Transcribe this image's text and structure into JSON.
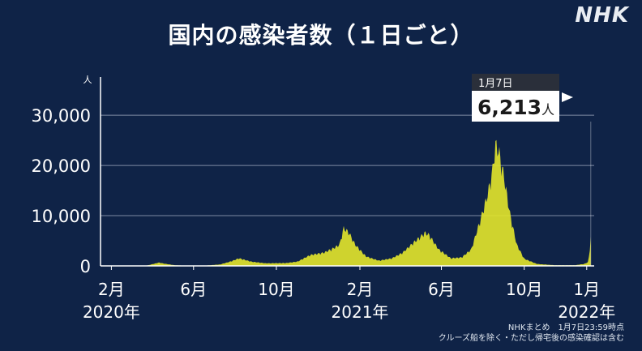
{
  "brand": "NHK",
  "source": {
    "line1": "NHKまとめ　1月7日23:59時点",
    "line2": "クルーズ船を除く・ただし帰宅後の感染確認は含む"
  },
  "colors": {
    "background": "#0f2347",
    "bar_fill": "#dfe32c",
    "grid": "#7d8aa3",
    "callout_header": "#2a2f3a",
    "callout_body": "#ffffff"
  },
  "callout": {
    "date": "1月7日",
    "value": "6,213",
    "unit": "人"
  },
  "chart_data": {
    "type": "bar",
    "title": "国内の感染者数（１日ごと）",
    "ylabel": "人",
    "xlabel": "",
    "ylim": [
      0,
      36000
    ],
    "grid": true,
    "y_ticks": [
      0,
      10000,
      20000,
      30000
    ],
    "y_tick_labels": [
      "0",
      "10,000",
      "20,000",
      "30,000"
    ],
    "x_ticks": [
      {
        "date": "2020-02-01",
        "label": "2月",
        "year": "2020年"
      },
      {
        "date": "2020-06-01",
        "label": "6月",
        "year": ""
      },
      {
        "date": "2020-10-01",
        "label": "10月",
        "year": ""
      },
      {
        "date": "2021-02-01",
        "label": "2月",
        "year": "2021年"
      },
      {
        "date": "2021-06-01",
        "label": "6月",
        "year": ""
      },
      {
        "date": "2021-10-01",
        "label": "10月",
        "year": ""
      },
      {
        "date": "2022-01-01",
        "label": "1月",
        "year": "2022年"
      }
    ],
    "series": [
      {
        "points": [
          [
            "2020-01-16",
            0
          ],
          [
            "2020-03-01",
            10
          ],
          [
            "2020-03-25",
            100
          ],
          [
            "2020-04-11",
            700
          ],
          [
            "2020-04-20",
            450
          ],
          [
            "2020-05-05",
            130
          ],
          [
            "2020-05-25",
            30
          ],
          [
            "2020-06-20",
            80
          ],
          [
            "2020-07-10",
            300
          ],
          [
            "2020-07-25",
            900
          ],
          [
            "2020-08-07",
            1600
          ],
          [
            "2020-08-25",
            900
          ],
          [
            "2020-09-15",
            550
          ],
          [
            "2020-10-15",
            600
          ],
          [
            "2020-11-01",
            900
          ],
          [
            "2020-11-20",
            2300
          ],
          [
            "2020-12-10",
            2800
          ],
          [
            "2020-12-25",
            3800
          ],
          [
            "2021-01-02",
            4500
          ],
          [
            "2021-01-08",
            8000
          ],
          [
            "2021-01-16",
            7000
          ],
          [
            "2021-01-25",
            4500
          ],
          [
            "2021-02-10",
            2000
          ],
          [
            "2021-03-01",
            1100
          ],
          [
            "2021-03-20",
            1600
          ],
          [
            "2021-04-05",
            2800
          ],
          [
            "2021-04-20",
            4800
          ],
          [
            "2021-05-08",
            7000
          ],
          [
            "2021-05-14",
            6500
          ],
          [
            "2021-05-28",
            3500
          ],
          [
            "2021-06-15",
            1600
          ],
          [
            "2021-07-01",
            1800
          ],
          [
            "2021-07-15",
            3500
          ],
          [
            "2021-07-28",
            9500
          ],
          [
            "2021-08-08",
            15000
          ],
          [
            "2021-08-15",
            20000
          ],
          [
            "2021-08-20",
            25800
          ],
          [
            "2021-08-25",
            24000
          ],
          [
            "2021-09-01",
            19000
          ],
          [
            "2021-09-10",
            11000
          ],
          [
            "2021-09-20",
            4500
          ],
          [
            "2021-10-01",
            1500
          ],
          [
            "2021-10-20",
            400
          ],
          [
            "2021-11-15",
            150
          ],
          [
            "2021-12-15",
            150
          ],
          [
            "2021-12-28",
            400
          ],
          [
            "2022-01-03",
            780
          ],
          [
            "2022-01-05",
            2600
          ],
          [
            "2022-01-07",
            6213
          ]
        ]
      }
    ]
  }
}
